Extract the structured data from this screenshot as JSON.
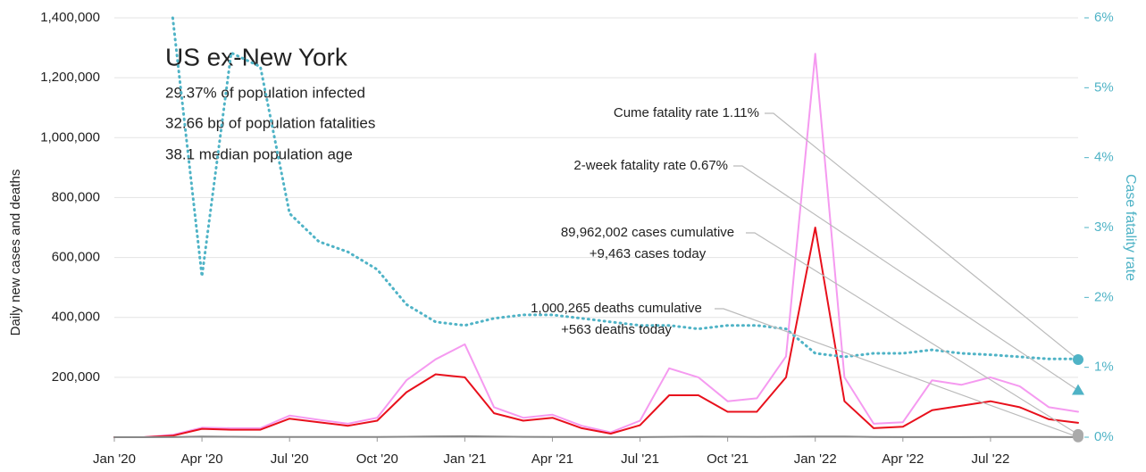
{
  "chart_data": {
    "type": "line",
    "title": "US ex-New York",
    "subtitle_lines": [
      "29.37% of population infected",
      "32.66 bp of population fatalities",
      "38.1 median population age"
    ],
    "ylabel": "Daily new cases and deaths",
    "y2label": "Case fatality rate",
    "x": [
      "2020-01",
      "2020-02",
      "2020-03",
      "2020-04",
      "2020-05",
      "2020-06",
      "2020-07",
      "2020-08",
      "2020-09",
      "2020-10",
      "2020-11",
      "2020-12",
      "2021-01",
      "2021-02",
      "2021-03",
      "2021-04",
      "2021-05",
      "2021-06",
      "2021-07",
      "2021-08",
      "2021-09",
      "2021-10",
      "2021-11",
      "2021-12",
      "2022-01",
      "2022-02",
      "2022-03",
      "2022-04",
      "2022-05",
      "2022-06",
      "2022-07",
      "2022-08",
      "2022-09",
      "2022-10"
    ],
    "xticks": [
      {
        "value": "2020-01",
        "label": "Jan '20"
      },
      {
        "value": "2020-04",
        "label": "Apr '20"
      },
      {
        "value": "2020-07",
        "label": "Jul '20"
      },
      {
        "value": "2020-10",
        "label": "Oct '20"
      },
      {
        "value": "2021-01",
        "label": "Jan '21"
      },
      {
        "value": "2021-04",
        "label": "Apr '21"
      },
      {
        "value": "2021-07",
        "label": "Jul '21"
      },
      {
        "value": "2021-10",
        "label": "Oct '21"
      },
      {
        "value": "2022-01",
        "label": "Jan '22"
      },
      {
        "value": "2022-04",
        "label": "Apr '22"
      },
      {
        "value": "2022-07",
        "label": "Jul '22"
      }
    ],
    "ylim": [
      0,
      1400000
    ],
    "yticks": [
      {
        "value": 200000,
        "label": "200,000"
      },
      {
        "value": 400000,
        "label": "400,000"
      },
      {
        "value": 600000,
        "label": "600,000"
      },
      {
        "value": 800000,
        "label": "800,000"
      },
      {
        "value": 1000000,
        "label": "1,000,000"
      },
      {
        "value": 1200000,
        "label": "1,200,000"
      },
      {
        "value": 1400000,
        "label": "1,400,000"
      }
    ],
    "y2lim": [
      0,
      6
    ],
    "y2ticks": [
      {
        "value": 0,
        "label": "0%"
      },
      {
        "value": 1,
        "label": "1%"
      },
      {
        "value": 2,
        "label": "2%"
      },
      {
        "value": 3,
        "label": "3%"
      },
      {
        "value": 4,
        "label": "4%"
      },
      {
        "value": 5,
        "label": "5%"
      },
      {
        "value": 6,
        "label": "6%"
      }
    ],
    "grid": true,
    "series": [
      {
        "color": "#f59af0",
        "style": "solid",
        "values": [
          0,
          0,
          8000,
          32000,
          30000,
          30000,
          72000,
          58000,
          45000,
          65000,
          190000,
          260000,
          310000,
          100000,
          65000,
          75000,
          38000,
          16000,
          55000,
          230000,
          200000,
          120000,
          130000,
          270000,
          1280000,
          200000,
          45000,
          50000,
          190000,
          175000,
          200000,
          170000,
          100000,
          85000
        ]
      },
      {
        "color": "#e8101c",
        "style": "solid",
        "values": [
          0,
          0,
          5000,
          28000,
          25000,
          25000,
          62000,
          50000,
          38000,
          55000,
          150000,
          210000,
          200000,
          80000,
          55000,
          65000,
          30000,
          12000,
          40000,
          140000,
          140000,
          85000,
          85000,
          200000,
          700000,
          120000,
          30000,
          35000,
          90000,
          105000,
          120000,
          100000,
          60000,
          48000
        ]
      },
      {
        "color": "#888888",
        "style": "solid",
        "values": [
          0,
          0,
          200,
          2000,
          1500,
          800,
          1000,
          1000,
          800,
          900,
          1600,
          2600,
          3200,
          2000,
          1300,
          800,
          600,
          300,
          400,
          1200,
          1800,
          1400,
          1200,
          1500,
          2400,
          2200,
          1000,
          400,
          400,
          400,
          500,
          500,
          450,
          400
        ]
      },
      {
        "color": "#4fb3c6",
        "style": "dotted",
        "axis": "y2",
        "values": [
          null,
          null,
          6,
          2.3,
          5.5,
          5.3,
          3.2,
          2.8,
          2.65,
          2.4,
          1.9,
          1.65,
          1.6,
          1.7,
          1.75,
          1.75,
          1.7,
          1.65,
          1.6,
          1.6,
          1.55,
          1.6,
          1.6,
          1.55,
          1.2,
          1.15,
          1.2,
          1.2,
          1.25,
          1.2,
          1.18,
          1.15,
          1.12,
          1.12
        ]
      }
    ],
    "end_markers": [
      {
        "axis": "y2",
        "value": 1.11,
        "shape": "circle",
        "color": "#4fb3c6"
      },
      {
        "axis": "y2",
        "value": 0.67,
        "shape": "triangle",
        "color": "#4fb3c6"
      },
      {
        "axis": "y",
        "value": 9463,
        "shape": "circle",
        "color": "#aaaaaa"
      },
      {
        "axis": "y",
        "value": 563,
        "shape": "circle",
        "color": "#aaaaaa"
      }
    ],
    "annotations": [
      {
        "lines": [
          "Cume fatality rate 1.11%"
        ],
        "marker": 0
      },
      {
        "lines": [
          "2-week fatality rate 0.67%"
        ],
        "marker": 1
      },
      {
        "lines": [
          "89,962,002 cases cumulative",
          "+9,463 cases today"
        ],
        "marker": 2
      },
      {
        "lines": [
          "1,000,265 deaths cumulative",
          "+563 deaths today"
        ],
        "marker": 3
      }
    ]
  }
}
